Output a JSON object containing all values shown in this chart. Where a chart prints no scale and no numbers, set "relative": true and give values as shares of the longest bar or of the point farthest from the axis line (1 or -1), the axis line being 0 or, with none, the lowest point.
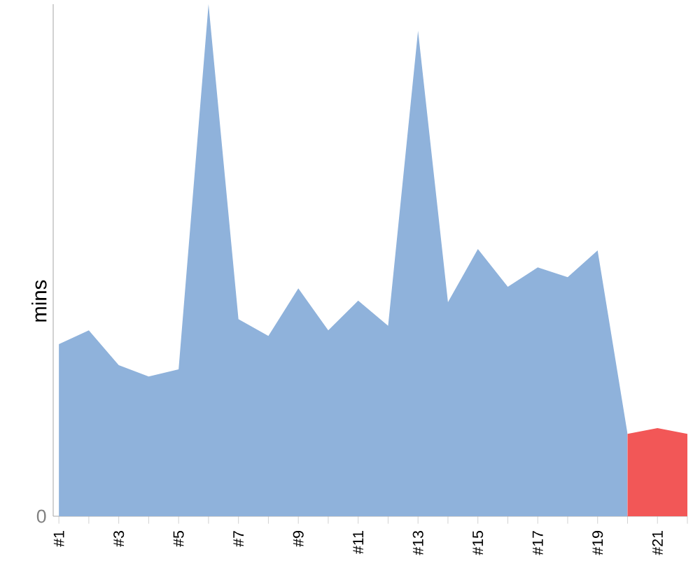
{
  "chart_data": {
    "type": "area",
    "relative": true,
    "ylabel": "mins",
    "categories": [
      "#1",
      null,
      "#3",
      null,
      "#5",
      null,
      "#7",
      null,
      "#9",
      null,
      "#11",
      null,
      "#13",
      null,
      "#15",
      null,
      "#17",
      null,
      "#19",
      null,
      "#21",
      null
    ],
    "series": [
      {
        "color": "#8fb2db",
        "values": [
          0.336,
          0.363,
          0.295,
          0.273,
          0.287,
          1,
          0.385,
          0.352,
          0.445,
          0.363,
          0.421,
          0.372,
          0.948,
          0.418,
          0.522,
          0.448,
          0.486,
          0.467,
          0.519,
          0.161,
          null,
          null
        ]
      },
      {
        "color": "#f25757",
        "values": [
          null,
          null,
          null,
          null,
          null,
          null,
          null,
          null,
          null,
          null,
          null,
          null,
          null,
          null,
          null,
          null,
          null,
          null,
          null,
          0.161,
          0.172,
          0.161
        ]
      }
    ],
    "annotations": [
      "0"
    ]
  }
}
